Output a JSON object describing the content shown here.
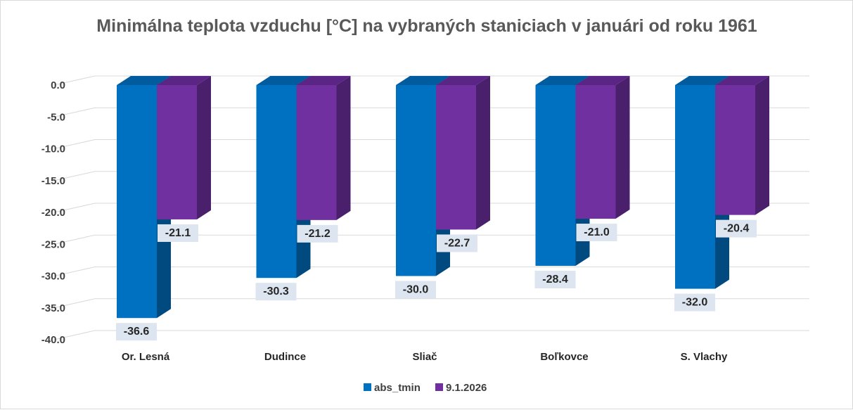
{
  "chart_data": {
    "type": "bar",
    "title": "Minimálna teplota vzduchu [°C] na vybraných staniciach v januári od roku 1961",
    "categories": [
      "Or. Lesná",
      "Dudince",
      "Sliač",
      "Boľkovce",
      "S. Vlachy"
    ],
    "series": [
      {
        "name": "abs_tmin",
        "values": [
          -36.6,
          -30.3,
          -30.0,
          -28.4,
          -32.0
        ],
        "color": "#0070C0",
        "side_color": "#004A80",
        "top_color": "#005C9E"
      },
      {
        "name": "9.1.2026",
        "values": [
          -21.1,
          -21.2,
          -22.7,
          -21.0,
          -20.4
        ],
        "color": "#7030A0",
        "side_color": "#4A1F6B",
        "top_color": "#5B2585"
      }
    ],
    "data_labels": [
      [
        "-36.6",
        "-30.3",
        "-30.0",
        "-28.4",
        "-32.0"
      ],
      [
        "-21.1",
        "-21.2",
        "-22.7",
        "-21.0",
        "-20.4"
      ]
    ],
    "ylim": [
      -40,
      0
    ],
    "yticks": [
      0,
      -5,
      -10,
      -15,
      -20,
      -25,
      -30,
      -35,
      -40
    ],
    "ytick_labels": [
      "0.0",
      "-5.0",
      "-10.0",
      "-15.0",
      "-20.0",
      "-25.0",
      "-30.0",
      "-35.0",
      "-40.0"
    ],
    "xlabel": "",
    "ylabel": "",
    "grid": true,
    "legend_position": "bottom"
  }
}
